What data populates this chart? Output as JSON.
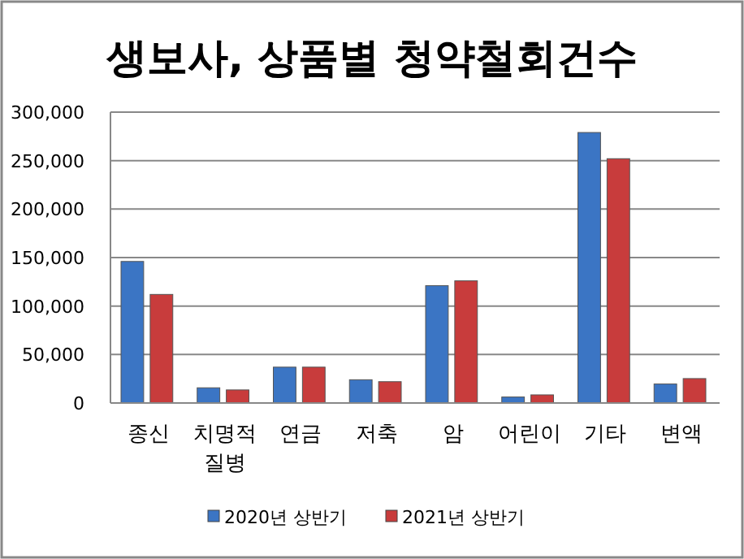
{
  "chart_data": {
    "type": "bar",
    "title": "생보사, 상품별 청약철회건수",
    "categories": [
      "종신",
      "치명적 질병",
      "연금",
      "저축",
      "암",
      "어린이",
      "기타",
      "변액"
    ],
    "series": [
      {
        "name": "2020년 상반기",
        "color": "#3b75c4",
        "values": [
          146000,
          15700,
          37000,
          24000,
          121000,
          6200,
          279000,
          19600
        ]
      },
      {
        "name": "2021년 상반기",
        "color": "#c83c3c",
        "values": [
          112000,
          13500,
          37000,
          22000,
          126000,
          8400,
          252000,
          25200
        ]
      }
    ],
    "ylim": [
      0,
      300000
    ],
    "yticks": [
      {
        "value": 0,
        "label": "0"
      },
      {
        "value": 50000,
        "label": "50,000"
      },
      {
        "value": 100000,
        "label": "100,000"
      },
      {
        "value": 150000,
        "label": "150,000"
      },
      {
        "value": 200000,
        "label": "200,000"
      },
      {
        "value": 250000,
        "label": "250,000"
      },
      {
        "value": 300000,
        "label": "300,000"
      }
    ],
    "grid": "y",
    "legend": "bottom"
  }
}
